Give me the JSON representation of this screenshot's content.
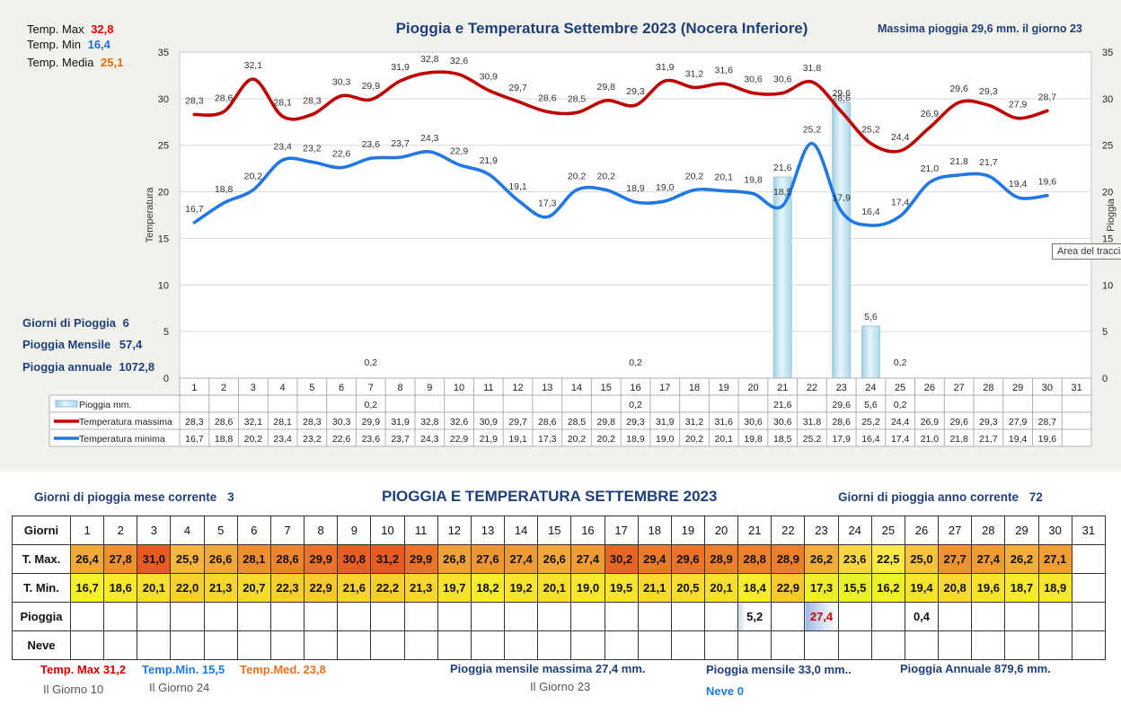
{
  "chart_data": {
    "type": "line",
    "title": "Pioggia e Temperatura Settembre 2023 (Nocera Inferiore)",
    "ylabel": "Temperatura",
    "y2label": "Pioggia",
    "ylim": [
      0,
      35
    ],
    "yticks": [
      "0",
      "5",
      "10",
      "15",
      "20",
      "25",
      "30",
      "35"
    ],
    "days": [
      "1",
      "2",
      "3",
      "4",
      "5",
      "6",
      "7",
      "8",
      "9",
      "10",
      "11",
      "12",
      "13",
      "14",
      "15",
      "16",
      "17",
      "18",
      "19",
      "20",
      "21",
      "22",
      "23",
      "24",
      "25",
      "26",
      "27",
      "28",
      "29",
      "30",
      "31"
    ],
    "series": [
      {
        "name": "Pioggia mm.",
        "type": "bar",
        "color": "#bfe3ef",
        "values": [
          null,
          null,
          null,
          null,
          null,
          null,
          0.2,
          null,
          null,
          null,
          null,
          null,
          null,
          null,
          null,
          0.2,
          null,
          null,
          null,
          null,
          21.6,
          null,
          29.6,
          5.6,
          0.2,
          null,
          null,
          null,
          null,
          null,
          null
        ],
        "labels": [
          "",
          "",
          "",
          "",
          "",
          "",
          "0,2",
          "",
          "",
          "",
          "",
          "",
          "",
          "",
          "",
          "0,2",
          "",
          "",
          "",
          "",
          "21,6",
          "",
          "29,6",
          "5,6",
          "0,2",
          "",
          "",
          "",
          "",
          "",
          ""
        ]
      },
      {
        "name": "Temperatura massima",
        "type": "line",
        "color": "#c00000",
        "values": [
          28.3,
          28.6,
          32.1,
          28.1,
          28.3,
          30.3,
          29.9,
          31.9,
          32.8,
          32.6,
          30.9,
          29.7,
          28.6,
          28.5,
          29.8,
          29.3,
          31.9,
          31.2,
          31.6,
          30.6,
          30.6,
          31.8,
          28.6,
          25.2,
          24.4,
          26.9,
          29.6,
          29.3,
          27.9,
          28.7,
          null
        ],
        "labels": [
          "28,3",
          "28,6",
          "32,1",
          "28,1",
          "28,3",
          "30,3",
          "29,9",
          "31,9",
          "32,8",
          "32,6",
          "30,9",
          "29,7",
          "28,6",
          "28,5",
          "29,8",
          "29,3",
          "31,9",
          "31,2",
          "31,6",
          "30,6",
          "30,6",
          "31,8",
          "28,6",
          "25,2",
          "24,4",
          "26,9",
          "29,6",
          "29,3",
          "27,9",
          "28,7",
          ""
        ]
      },
      {
        "name": "Temperatura minima",
        "type": "line",
        "color": "#1f78e6",
        "values": [
          16.7,
          18.8,
          20.2,
          23.4,
          23.2,
          22.6,
          23.6,
          23.7,
          24.3,
          22.9,
          21.9,
          19.1,
          17.3,
          20.2,
          20.2,
          18.9,
          19.0,
          20.2,
          20.1,
          19.8,
          18.5,
          25.2,
          17.9,
          16.4,
          17.4,
          21.0,
          21.8,
          21.7,
          19.4,
          19.6,
          null
        ],
        "labels": [
          "16,7",
          "18,8",
          "20,2",
          "23,4",
          "23,2",
          "22,6",
          "23,6",
          "23,7",
          "24,3",
          "22,9",
          "21,9",
          "19,1",
          "17,3",
          "20,2",
          "20,2",
          "18,9",
          "19,0",
          "20,2",
          "20,1",
          "19,8",
          "18,5",
          "25,2",
          "17,9",
          "16,4",
          "17,4",
          "21,0",
          "21,8",
          "21,7",
          "19,4",
          "19,6",
          ""
        ]
      }
    ]
  },
  "panel": {
    "tmax_label": "Temp. Max",
    "tmax_value": "32,8",
    "tmin_label": "Temp.  Min",
    "tmin_value": "16,4",
    "tavg_label": "Temp. Media",
    "tavg_value": "25,1",
    "max_rain": "Massima pioggia  29,6 mm. il giorno  23",
    "rain_days_label": "Giorni di Pioggia",
    "rain_days_value": "6",
    "rain_month_label": "Pioggia Mensile",
    "rain_month_value": "57,4",
    "rain_year_label": "Pioggia annuale",
    "rain_year_value": "1072,8",
    "tooltip": "Area del tracciato"
  },
  "table": {
    "title": "PIOGGIA E TEMPERATURA SETTEMBRE 2023",
    "left_note_label": "Giorni di pioggia mese corrente",
    "left_note_value": "3",
    "right_note_label": "Giorni di pioggia anno corrente",
    "right_note_value": "72",
    "row_labels": [
      "Giorni",
      "T. Max.",
      "T. Min.",
      "Pioggia",
      "Neve"
    ],
    "days": [
      "1",
      "2",
      "3",
      "4",
      "5",
      "6",
      "7",
      "8",
      "9",
      "10",
      "11",
      "12",
      "13",
      "14",
      "15",
      "16",
      "17",
      "18",
      "19",
      "20",
      "21",
      "22",
      "23",
      "24",
      "25",
      "26",
      "27",
      "28",
      "29",
      "30",
      "31"
    ],
    "tmax": [
      "26,4",
      "27,8",
      "31,0",
      "25,9",
      "26,6",
      "28,1",
      "28,6",
      "29,9",
      "30,8",
      "31,2",
      "29,9",
      "26,8",
      "27,6",
      "27,4",
      "26,6",
      "27,4",
      "30,2",
      "29,4",
      "29,6",
      "28,9",
      "28,8",
      "28,9",
      "26,2",
      "23,6",
      "22,5",
      "25,0",
      "27,7",
      "27,4",
      "26,2",
      "27,1",
      ""
    ],
    "tmax_colors": [
      "#f2a93a",
      "#ef8f2f",
      "#e85a22",
      "#f5b53c",
      "#f2a73a",
      "#ef8e2f",
      "#ee852d",
      "#eb722a",
      "#e85f24",
      "#e85a22",
      "#eb722a",
      "#f0a137",
      "#ef9532",
      "#f09b34",
      "#f2a73a",
      "#f09b34",
      "#e86524",
      "#ec7a2b",
      "#eb722a",
      "#ec7e2c",
      "#ec802c",
      "#ec7e2c",
      "#f2ad3a",
      "#f8d642",
      "#fae946",
      "#f6c33d",
      "#ef9331",
      "#f09b34",
      "#f2ad3a",
      "#f09d35",
      ""
    ],
    "tmin": [
      "16,7",
      "18,6",
      "20,1",
      "22,0",
      "21,3",
      "20,7",
      "22,3",
      "22,9",
      "21,6",
      "22,2",
      "21,3",
      "19,7",
      "18,2",
      "19,2",
      "20,1",
      "19,0",
      "19,5",
      "21,1",
      "20,5",
      "20,1",
      "18,4",
      "22,9",
      "17,3",
      "15,5",
      "16,2",
      "19,4",
      "20,8",
      "19,6",
      "18,7",
      "18,9",
      ""
    ],
    "tmin_colors": [
      "#f6f02a",
      "#f8e82e",
      "#f8df2f",
      "#f8d02f",
      "#f8d62f",
      "#f8da2f",
      "#f8ce2f",
      "#f8c92f",
      "#f8d32f",
      "#f8ce2f",
      "#f8d62f",
      "#f8e22f",
      "#f8ea2e",
      "#f8e42f",
      "#f8df2f",
      "#f8e62f",
      "#f8e32f",
      "#f8d72f",
      "#f8dc2f",
      "#f8df2f",
      "#f8eb2e",
      "#f8c92f",
      "#f0ee2a",
      "#e9ef28",
      "#eef02a",
      "#f8e42f",
      "#f8d82f",
      "#f8e22f",
      "#f8e82e",
      "#f8e62e",
      ""
    ],
    "rain": [
      "",
      "",
      "",
      "",
      "",
      "",
      "",
      "",
      "",
      "",
      "",
      "",
      "",
      "",
      "",
      "",
      "",
      "",
      "",
      "",
      "5,2",
      "",
      "27,4",
      "",
      "",
      "0,4",
      "",
      "",
      "",
      "",
      ""
    ],
    "snow": [
      "",
      "",
      "",
      "",
      "",
      "",
      "",
      "",
      "",
      "",
      "",
      "",
      "",
      "",
      "",
      "",
      "",
      "",
      "",
      "",
      "",
      "",
      "",
      "",
      "",
      "",
      "",
      "",
      "",
      "",
      ""
    ]
  },
  "footer": {
    "tmax": "Temp. Max 31,2",
    "tmax_day": "Il Giorno  10",
    "tmin": "Temp.Min.  15,5",
    "tmin_day": "Il Giorno 24",
    "tmed": "Temp.Med. 23,8",
    "rain_max": "Pioggia mensile massima 27,4  mm.",
    "rain_max_day": "Il Giorno 23",
    "rain_month": "Pioggia mensile  33,0  mm..",
    "rain_year": "Pioggia Annuale  879,6   mm.",
    "snow": "Neve 0"
  }
}
